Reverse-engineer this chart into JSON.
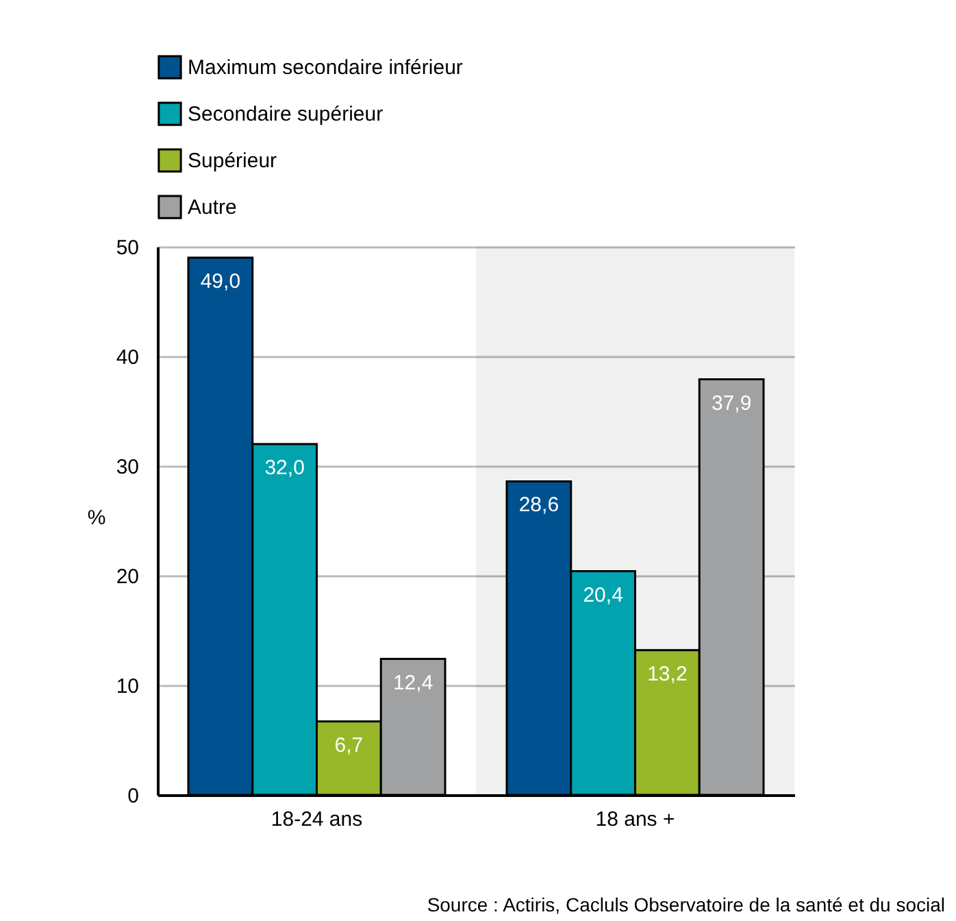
{
  "chart_data": {
    "type": "bar",
    "categories": [
      "18-24 ans",
      "18 ans +"
    ],
    "ylabel": "%",
    "ylim": [
      0,
      50
    ],
    "yticks": [
      0,
      10,
      20,
      30,
      40,
      50
    ],
    "grid": "y",
    "legend": "top left",
    "series": [
      {
        "name": "Maximum secondaire inférieur",
        "color": "#005190",
        "values": [
          49.0,
          28.6
        ],
        "value_labels": [
          "49,0",
          "28,6"
        ]
      },
      {
        "name": "Secondaire supérieur",
        "color": "#00a3ae",
        "values": [
          32.0,
          20.4
        ],
        "value_labels": [
          "32,0",
          "20,4"
        ]
      },
      {
        "name": "Supérieur",
        "color": "#98b82a",
        "values": [
          6.7,
          13.2
        ],
        "value_labels": [
          "6,7",
          "13,2"
        ]
      },
      {
        "name": "Autre",
        "color": "#a0a1a3",
        "values": [
          12.4,
          37.9
        ],
        "value_labels": [
          "12,4",
          "37,9"
        ]
      }
    ],
    "bands": [
      {
        "axis": "x",
        "from": "18 ans +",
        "to": "18 ans +",
        "color": "#f0f0f0"
      }
    ],
    "annotations": [
      "Source : Actiris, Cacluls Observatoire de la santé et du social"
    ]
  }
}
